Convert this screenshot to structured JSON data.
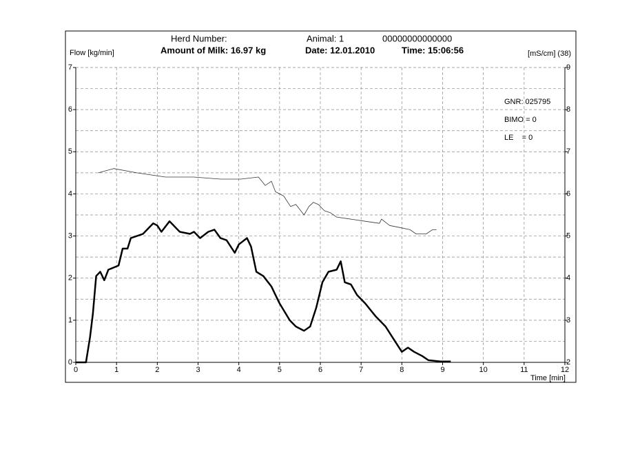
{
  "chart_data": {
    "type": "line",
    "header": [
      "Herd Number:",
      "Animal: 1",
      "00000000000000",
      "Amount of Milk: 16.97 kg",
      "Date: 12.01.2010",
      "Time: 15:06:56"
    ],
    "ylabel": "Flow [kg/min]",
    "y2label": "[mS/cm] (38)",
    "xlabel": "Time [min]",
    "annotations": [
      "GNR: 025795",
      "BIMO = 0",
      "LE    = 0"
    ],
    "xlim": [
      0,
      12
    ],
    "xticks": [
      0,
      1,
      2,
      3,
      4,
      5,
      6,
      7,
      8,
      9,
      10,
      11,
      12
    ],
    "ylim": [
      0,
      7
    ],
    "yticks": [
      0,
      1,
      2,
      3,
      4,
      5,
      6,
      7
    ],
    "minor_yticks": [
      0.5,
      1.5,
      2.5,
      3.5,
      4.5,
      5.5,
      6.5
    ],
    "y2lim": [
      2,
      9
    ],
    "y2ticks": [
      2,
      3,
      4,
      5,
      6,
      7,
      8,
      9
    ],
    "grid": true,
    "series": [
      {
        "color": "#000000",
        "line_width": 2.5,
        "x": [
          0,
          0.25,
          0.35,
          0.42,
          0.5,
          0.6,
          0.7,
          0.8,
          0.93,
          1.05,
          1.15,
          1.27,
          1.35,
          1.5,
          1.65,
          1.8,
          1.9,
          2.0,
          2.1,
          2.3,
          2.4,
          2.55,
          2.8,
          2.9,
          3.05,
          3.25,
          3.4,
          3.55,
          3.7,
          3.9,
          4.0,
          4.2,
          4.3,
          4.43,
          4.6,
          4.8,
          5.0,
          5.25,
          5.4,
          5.6,
          5.75,
          5.9,
          6.05,
          6.2,
          6.4,
          6.5,
          6.6,
          6.75,
          6.9,
          7.1,
          7.35,
          7.6,
          7.8,
          8.0,
          8.15,
          8.3,
          8.5,
          8.65,
          8.95,
          9.2
        ],
        "values": [
          0,
          0,
          0.6,
          1.15,
          2.05,
          2.15,
          1.95,
          2.2,
          2.25,
          2.3,
          2.7,
          2.7,
          2.95,
          3.0,
          3.05,
          3.2,
          3.3,
          3.25,
          3.1,
          3.35,
          3.25,
          3.1,
          3.05,
          3.1,
          2.95,
          3.1,
          3.15,
          2.95,
          2.9,
          2.6,
          2.8,
          2.95,
          2.75,
          2.15,
          2.05,
          1.8,
          1.4,
          1.0,
          0.85,
          0.75,
          0.85,
          1.3,
          1.9,
          2.15,
          2.2,
          2.4,
          1.9,
          1.85,
          1.6,
          1.4,
          1.1,
          0.85,
          0.55,
          0.25,
          0.35,
          0.25,
          0.15,
          0.05,
          0.02,
          0.02
        ]
      },
      {
        "color": "#333333",
        "line_width": 0.8,
        "axis": "y2",
        "x": [
          0.55,
          0.93,
          1.5,
          2.2,
          2.9,
          3.55,
          4.05,
          4.48,
          4.65,
          4.8,
          4.9,
          5.1,
          5.27,
          5.4,
          5.6,
          5.72,
          5.83,
          5.95,
          6.1,
          6.25,
          6.4,
          6.75,
          7.1,
          7.45,
          7.5,
          7.7,
          7.95,
          8.2,
          8.35,
          8.6,
          8.75,
          8.85
        ],
        "values": [
          6.5,
          6.6,
          6.5,
          6.4,
          6.4,
          6.35,
          6.35,
          6.4,
          6.2,
          6.3,
          6.05,
          5.95,
          5.7,
          5.75,
          5.5,
          5.7,
          5.8,
          5.75,
          5.6,
          5.55,
          5.45,
          5.4,
          5.35,
          5.3,
          5.4,
          5.25,
          5.2,
          5.15,
          5.05,
          5.05,
          5.15,
          5.15
        ]
      }
    ]
  }
}
